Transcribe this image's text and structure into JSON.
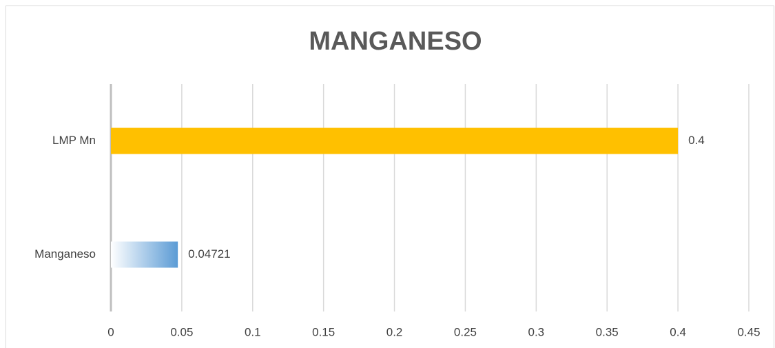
{
  "chart_data": {
    "type": "hbar",
    "title": "MANGANESO",
    "categories": [
      "Manganeso",
      "LMP Mn"
    ],
    "values": [
      0.04721,
      0.4
    ],
    "colors": [
      "#5b9bd5",
      "#ffc000"
    ],
    "fill_styles": [
      "gradient",
      "solid"
    ],
    "xlim": [
      0,
      0.45
    ],
    "xticks": [
      0,
      0.05,
      0.1,
      0.15,
      0.2,
      0.25,
      0.3,
      0.35,
      0.4,
      0.45
    ],
    "grid": true
  }
}
